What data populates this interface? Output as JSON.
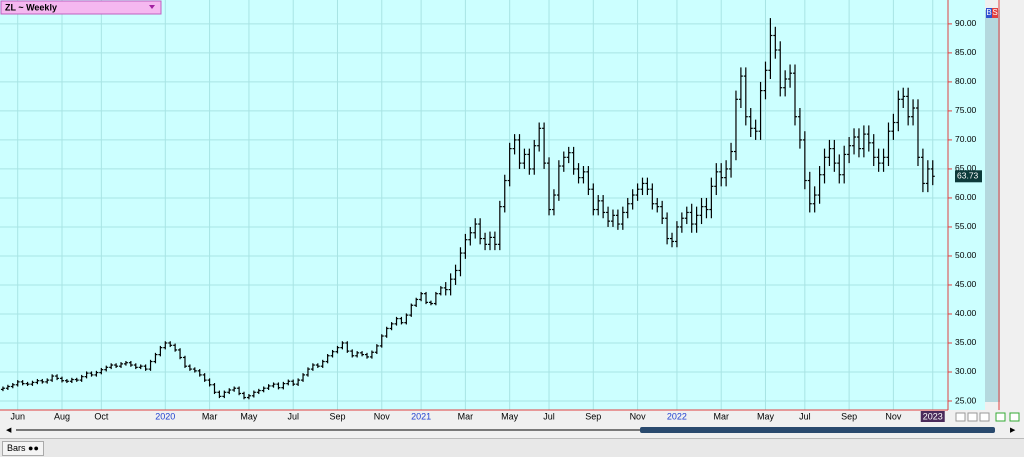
{
  "chart_data": {
    "type": "ohlc",
    "title": "ZL ~ Weekly",
    "color": "#000000",
    "grid": true,
    "ylim": [
      23.45,
      93.6
    ],
    "yticks": [
      {
        "value": 25,
        "label": "25.00"
      },
      {
        "value": 30,
        "label": "30.00"
      },
      {
        "value": 35,
        "label": "35.00"
      },
      {
        "value": 40,
        "label": "40.00"
      },
      {
        "value": 45,
        "label": "45.00"
      },
      {
        "value": 50,
        "label": "50.00"
      },
      {
        "value": 55,
        "label": "55.00"
      },
      {
        "value": 60,
        "label": "60.00"
      },
      {
        "value": 65,
        "label": "65.00"
      },
      {
        "value": 70,
        "label": "70.00"
      },
      {
        "value": 75,
        "label": "75.00"
      },
      {
        "value": 80,
        "label": "80.00"
      },
      {
        "value": 85,
        "label": "85.00"
      },
      {
        "value": 90,
        "label": "90.00"
      }
    ],
    "xlim": [
      -0.6,
      192.1
    ],
    "xticks": [
      {
        "value": 3,
        "label": "Jun"
      },
      {
        "value": 12,
        "label": "Aug"
      },
      {
        "value": 20,
        "label": "Oct"
      },
      {
        "value": 33,
        "label": "2020"
      },
      {
        "value": 42,
        "label": "Mar"
      },
      {
        "value": 50,
        "label": "May"
      },
      {
        "value": 59,
        "label": "Jul"
      },
      {
        "value": 68,
        "label": "Sep"
      },
      {
        "value": 77,
        "label": "Nov"
      },
      {
        "value": 85,
        "label": "2021"
      },
      {
        "value": 94,
        "label": "Mar"
      },
      {
        "value": 103,
        "label": "May"
      },
      {
        "value": 111,
        "label": "Jul"
      },
      {
        "value": 120,
        "label": "Sep"
      },
      {
        "value": 129,
        "label": "Nov"
      },
      {
        "value": 137,
        "label": "2022"
      },
      {
        "value": 146,
        "label": "Mar"
      },
      {
        "value": 155,
        "label": "May"
      },
      {
        "value": 163,
        "label": "Jul"
      },
      {
        "value": 172,
        "label": "Sep"
      },
      {
        "value": 181,
        "label": "Nov"
      },
      {
        "value": 189,
        "label": "2023"
      }
    ],
    "open": [
      27.0,
      27.2,
      27.5,
      27.8,
      28.3,
      28.0,
      27.9,
      28.2,
      28.5,
      28.3,
      28.6,
      29.3,
      28.9,
      28.5,
      28.4,
      28.7,
      28.6,
      29.2,
      29.8,
      29.5,
      29.9,
      30.4,
      30.8,
      31.2,
      31.0,
      31.4,
      31.6,
      31.2,
      30.8,
      31.0,
      30.5,
      31.8,
      33.0,
      34.2,
      35.0,
      34.6,
      33.8,
      32.5,
      31.0,
      30.5,
      30.2,
      29.5,
      28.6,
      27.8,
      26.5,
      25.8,
      26.5,
      26.9,
      27.2,
      26.3,
      25.6,
      25.9,
      26.5,
      26.8,
      27.2,
      27.6,
      27.9,
      27.3,
      28.0,
      28.4,
      27.9,
      28.6,
      29.5,
      30.5,
      31.2,
      31.0,
      31.8,
      32.8,
      33.5,
      34.2,
      35.0,
      33.6,
      32.8,
      33.3,
      33.0,
      32.6,
      33.4,
      34.5,
      36.2,
      37.5,
      38.3,
      39.2,
      38.5,
      39.8,
      41.5,
      42.5,
      43.5,
      42.0,
      41.8,
      43.5,
      44.5,
      44.2,
      46.0,
      47.5,
      50.5,
      52.8,
      54.0,
      55.5,
      53.0,
      52.0,
      53.2,
      52.0,
      58.5,
      63.0,
      68.5,
      70.0,
      66.0,
      67.5,
      65.0,
      69.0,
      72.0,
      66.0,
      58.0,
      60.5,
      65.5,
      67.0,
      67.8,
      65.0,
      63.5,
      64.5,
      61.5,
      58.0,
      59.5,
      57.5,
      56.0,
      57.0,
      55.5,
      57.5,
      59.0,
      60.5,
      61.5,
      62.5,
      61.5,
      59.0,
      58.5,
      56.5,
      53.0,
      52.5,
      55.0,
      56.5,
      57.5,
      55.5,
      57.0,
      58.5,
      58.0,
      62.0,
      64.5,
      63.5,
      65.0,
      68.0,
      77.0,
      81.0,
      74.0,
      72.0,
      71.5,
      78.5,
      82.0,
      88.0,
      85.5,
      79.0,
      80.5,
      81.5,
      74.0,
      70.0,
      63.0,
      59.0,
      60.5,
      64.0,
      67.0,
      68.5,
      66.0,
      64.0,
      67.5,
      69.0,
      70.5,
      68.5,
      71.0,
      69.5,
      67.0,
      66.0,
      67.0,
      71.5,
      73.0,
      77.0,
      77.5,
      74.0,
      75.5,
      67.0,
      62.5,
      65.0
    ],
    "high": [
      27.5,
      27.8,
      28.1,
      28.6,
      28.6,
      28.3,
      28.5,
      28.8,
      28.8,
      28.9,
      29.6,
      29.6,
      29.2,
      28.8,
      29.0,
      29.0,
      29.5,
      30.1,
      30.1,
      30.2,
      30.7,
      31.1,
      31.5,
      31.5,
      31.7,
      31.9,
      31.9,
      31.5,
      31.3,
      31.3,
      32.1,
      33.3,
      34.5,
      35.3,
      35.3,
      34.9,
      34.1,
      32.8,
      31.3,
      30.8,
      30.5,
      29.8,
      28.9,
      28.1,
      26.8,
      26.8,
      27.2,
      27.5,
      27.5,
      26.6,
      26.2,
      26.8,
      27.1,
      27.5,
      27.9,
      28.2,
      28.2,
      28.3,
      28.7,
      28.7,
      28.9,
      29.8,
      30.8,
      31.5,
      31.5,
      32.1,
      33.1,
      33.8,
      34.5,
      35.3,
      35.3,
      33.9,
      33.6,
      33.6,
      33.3,
      33.7,
      34.8,
      36.5,
      37.8,
      38.6,
      39.5,
      39.5,
      40.1,
      41.8,
      42.8,
      43.8,
      43.8,
      42.3,
      43.8,
      44.8,
      45.5,
      47.0,
      48.5,
      51.5,
      53.8,
      55.0,
      56.5,
      56.5,
      54.0,
      54.2,
      54.2,
      59.5,
      64.0,
      69.5,
      71.0,
      71.0,
      68.5,
      68.5,
      70.0,
      73.0,
      73.0,
      67.0,
      61.5,
      66.5,
      68.0,
      68.8,
      68.8,
      66.0,
      65.5,
      65.5,
      62.5,
      60.5,
      60.5,
      58.5,
      58.0,
      58.0,
      58.5,
      60.0,
      61.5,
      62.5,
      63.5,
      63.5,
      62.5,
      60.0,
      59.5,
      57.5,
      54.0,
      56.0,
      57.5,
      58.5,
      59.0,
      58.5,
      60.0,
      60.0,
      63.5,
      66.0,
      66.0,
      66.5,
      69.5,
      78.5,
      82.5,
      82.5,
      75.5,
      73.5,
      80.0,
      83.5,
      91.0,
      89.5,
      87.0,
      82.0,
      83.0,
      83.0,
      75.5,
      71.5,
      64.5,
      62.0,
      65.5,
      68.5,
      70.0,
      70.0,
      67.5,
      69.0,
      70.5,
      72.0,
      72.0,
      72.5,
      72.5,
      71.0,
      68.5,
      68.5,
      73.0,
      74.5,
      78.5,
      79.0,
      79.0,
      77.0,
      77.0,
      68.5,
      66.5,
      66.5
    ],
    "low": [
      26.7,
      26.9,
      27.2,
      27.5,
      27.7,
      27.6,
      27.6,
      27.9,
      28.0,
      28.0,
      28.3,
      28.6,
      28.2,
      28.1,
      28.1,
      28.3,
      28.3,
      28.9,
      29.2,
      29.2,
      29.6,
      30.1,
      30.5,
      30.7,
      30.7,
      31.1,
      30.9,
      30.5,
      30.5,
      30.2,
      30.2,
      31.5,
      32.7,
      33.9,
      34.3,
      33.5,
      32.2,
      30.7,
      30.2,
      29.9,
      29.2,
      28.3,
      27.5,
      26.2,
      25.5,
      25.5,
      26.2,
      26.6,
      26.0,
      25.3,
      25.3,
      25.6,
      26.2,
      26.5,
      26.9,
      27.3,
      27.0,
      27.0,
      27.7,
      27.6,
      27.6,
      28.3,
      29.2,
      30.2,
      30.7,
      30.7,
      31.5,
      32.5,
      33.2,
      33.9,
      33.3,
      32.5,
      32.5,
      32.7,
      32.3,
      32.3,
      33.1,
      34.2,
      35.9,
      37.2,
      38.0,
      38.2,
      38.2,
      39.5,
      41.2,
      42.2,
      41.7,
      41.5,
      41.5,
      43.2,
      43.2,
      43.2,
      45.0,
      46.5,
      49.5,
      51.8,
      53.0,
      52.0,
      51.0,
      51.0,
      51.0,
      51.0,
      57.5,
      62.0,
      67.5,
      65.0,
      65.0,
      64.0,
      64.0,
      68.0,
      65.0,
      57.0,
      57.0,
      59.5,
      64.5,
      66.0,
      64.0,
      62.5,
      62.5,
      60.5,
      57.0,
      57.0,
      56.5,
      55.0,
      55.0,
      54.5,
      54.5,
      56.5,
      58.0,
      59.5,
      60.5,
      60.5,
      58.0,
      57.5,
      55.5,
      52.0,
      51.5,
      51.5,
      54.0,
      55.5,
      54.0,
      54.0,
      55.5,
      56.5,
      56.5,
      60.5,
      62.0,
      62.0,
      63.5,
      66.5,
      75.5,
      72.5,
      70.5,
      70.0,
      70.0,
      77.0,
      80.5,
      84.0,
      77.5,
      77.5,
      79.0,
      72.5,
      68.5,
      61.5,
      57.5,
      57.5,
      59.0,
      62.5,
      65.5,
      64.5,
      62.5,
      62.5,
      66.0,
      67.5,
      67.0,
      67.0,
      68.0,
      65.5,
      64.5,
      64.5,
      65.5,
      70.0,
      71.5,
      75.5,
      72.5,
      72.5,
      65.5,
      61.0,
      61.0,
      62.2
    ],
    "close": [
      27.2,
      27.5,
      27.8,
      28.3,
      28.0,
      27.9,
      28.2,
      28.5,
      28.3,
      28.6,
      29.3,
      28.9,
      28.5,
      28.4,
      28.7,
      28.6,
      29.2,
      29.8,
      29.5,
      29.9,
      30.4,
      30.8,
      31.2,
      31.0,
      31.4,
      31.6,
      31.2,
      30.8,
      31.0,
      30.5,
      31.8,
      33.0,
      34.2,
      35.0,
      34.6,
      33.8,
      32.5,
      31.0,
      30.5,
      30.2,
      29.5,
      28.6,
      27.8,
      26.5,
      25.8,
      26.5,
      26.9,
      27.2,
      26.3,
      25.6,
      25.9,
      26.5,
      26.8,
      27.2,
      27.6,
      27.9,
      27.3,
      28.0,
      28.4,
      27.9,
      28.6,
      29.5,
      30.5,
      31.2,
      31.0,
      31.8,
      32.8,
      33.5,
      34.2,
      35.0,
      33.6,
      32.8,
      33.3,
      33.0,
      32.6,
      33.4,
      34.5,
      36.2,
      37.5,
      38.3,
      39.2,
      38.5,
      39.8,
      41.5,
      42.5,
      43.5,
      42.0,
      41.8,
      43.5,
      44.5,
      44.2,
      46.0,
      47.5,
      50.5,
      52.8,
      54.0,
      55.5,
      53.0,
      52.0,
      53.2,
      52.0,
      58.5,
      63.0,
      68.5,
      70.0,
      66.0,
      67.5,
      65.0,
      69.0,
      72.0,
      66.0,
      58.0,
      60.5,
      65.5,
      67.0,
      67.8,
      65.0,
      63.5,
      64.5,
      61.5,
      58.0,
      59.5,
      57.5,
      56.0,
      57.0,
      55.5,
      57.5,
      59.0,
      60.5,
      61.5,
      62.5,
      61.5,
      59.0,
      58.5,
      56.5,
      53.0,
      52.5,
      55.0,
      56.5,
      57.5,
      55.5,
      57.0,
      58.5,
      58.0,
      62.0,
      64.5,
      63.5,
      65.0,
      68.0,
      77.0,
      81.0,
      74.0,
      72.0,
      71.5,
      78.5,
      82.0,
      88.0,
      85.5,
      79.0,
      80.5,
      81.5,
      74.0,
      70.0,
      63.0,
      59.0,
      60.5,
      64.0,
      67.0,
      68.5,
      66.0,
      64.0,
      67.5,
      69.0,
      70.5,
      68.5,
      71.0,
      69.5,
      67.0,
      66.0,
      67.0,
      71.5,
      73.0,
      77.0,
      77.5,
      74.0,
      75.5,
      67.0,
      62.5,
      65.0,
      63.73
    ],
    "last_value_label": "63.73",
    "badge_buy": "B",
    "badge_sell": "S",
    "toolbar_label": "Bars"
  }
}
